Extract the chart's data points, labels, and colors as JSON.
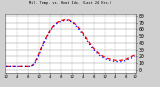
{
  "title": "Mil. Temp. vs. Heat Idx. (Last 24 Hrs.)",
  "background_color": "#d0d0d0",
  "plot_bg_color": "#ffffff",
  "grid_color": "#888888",
  "ylim": [
    -5,
    83
  ],
  "ytick_values": [
    0,
    10,
    20,
    30,
    40,
    50,
    60,
    70,
    80
  ],
  "ytick_labels": [
    "0",
    "10",
    "20",
    "30",
    "40",
    "50",
    "60",
    "70",
    "80"
  ],
  "time_points": 48,
  "temp_color": "#ff0000",
  "hi_color": "#0000ff",
  "temp_values": [
    5,
    5,
    5,
    5,
    5,
    5,
    5,
    5,
    5,
    5,
    8,
    15,
    24,
    34,
    43,
    51,
    58,
    64,
    68,
    71,
    73,
    74,
    75,
    74,
    72,
    69,
    65,
    60,
    55,
    49,
    43,
    37,
    32,
    28,
    24,
    21,
    19,
    17,
    16,
    15,
    14,
    14,
    14,
    15,
    16,
    18,
    20,
    22
  ],
  "hi_values": [
    5,
    5,
    5,
    5,
    5,
    5,
    5,
    5,
    5,
    5,
    7,
    13,
    22,
    32,
    41,
    50,
    57,
    63,
    67,
    70,
    72,
    73,
    74,
    73,
    71,
    68,
    63,
    58,
    53,
    47,
    41,
    35,
    30,
    26,
    22,
    19,
    17,
    15,
    14,
    13,
    12,
    12,
    12,
    13,
    14,
    16,
    18,
    20
  ],
  "x_tick_positions": [
    0,
    4,
    8,
    12,
    16,
    20,
    24,
    28,
    32,
    36,
    40,
    44,
    47
  ],
  "x_tick_labels": [
    "12",
    "4",
    "8",
    "12",
    "4",
    "8",
    "12",
    "4",
    "8",
    "12",
    "4",
    "8",
    "12"
  ],
  "grid_x_positions": [
    0,
    4,
    8,
    12,
    16,
    20,
    24,
    28,
    32,
    36,
    40,
    44,
    47
  ]
}
